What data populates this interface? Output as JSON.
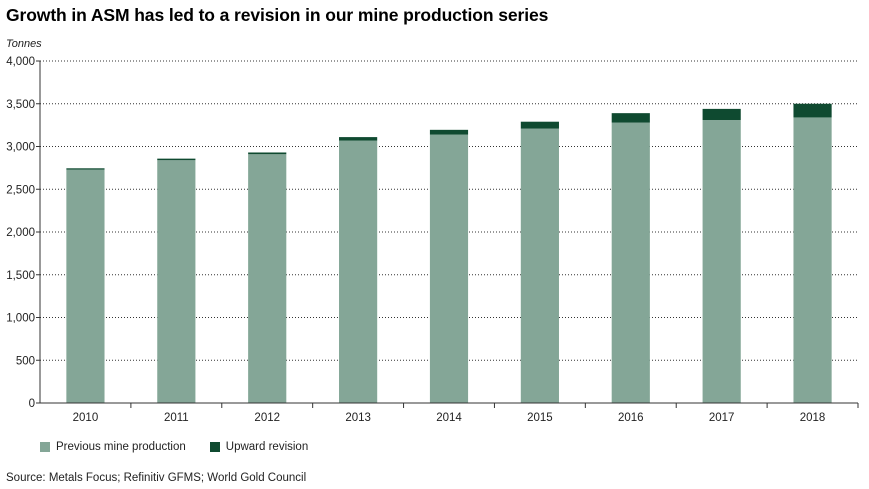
{
  "chart_data": {
    "type": "bar",
    "stacked": true,
    "title": "Growth in ASM has led to a revision in our mine production series",
    "ylabel": "Tonnes",
    "xlabel": "",
    "ylim": [
      0,
      4000
    ],
    "yticks": [
      0,
      500,
      1000,
      1500,
      2000,
      2500,
      3000,
      3500,
      4000
    ],
    "ytick_labels": [
      "0",
      "500",
      "1,000",
      "1,500",
      "2,000",
      "2,500",
      "3,000",
      "3,500",
      "4,000"
    ],
    "grid": "horizontal dotted",
    "legend_position": "bottom",
    "categories": [
      "2010",
      "2011",
      "2012",
      "2013",
      "2014",
      "2015",
      "2016",
      "2017",
      "2018"
    ],
    "series": [
      {
        "name": "Previous mine production",
        "color": "#84a697",
        "values": [
          2730,
          2840,
          2910,
          3070,
          3140,
          3210,
          3280,
          3310,
          3340
        ]
      },
      {
        "name": "Upward revision",
        "color": "#0f4a30",
        "values": [
          15,
          18,
          20,
          40,
          55,
          80,
          110,
          130,
          160
        ]
      }
    ],
    "source": "Source: Metals Focus; Refinitiv GFMS; World Gold Council"
  }
}
